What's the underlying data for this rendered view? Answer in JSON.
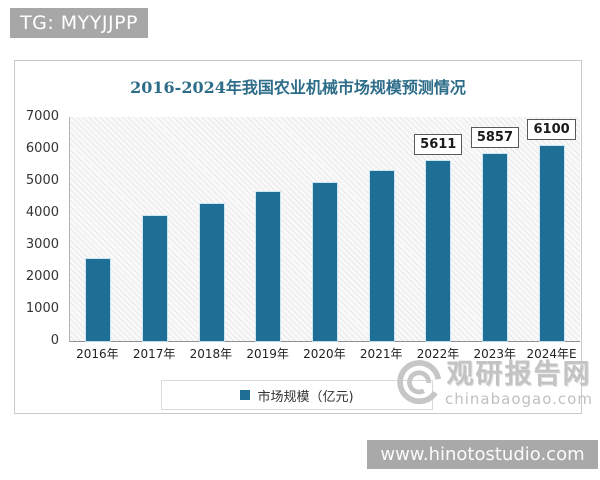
{
  "page": {
    "tg_badge": "TG: MYYJJPP",
    "bottom_banner": "www.hinotostudio.com"
  },
  "watermark": {
    "name": "观研报告网",
    "domain": "chinabaogao.com"
  },
  "chart_data": {
    "type": "bar",
    "title": "2016-2024年我国农业机械市场规模预测情况",
    "categories": [
      "2016年",
      "2017年",
      "2018年",
      "2019年",
      "2020年",
      "2021年",
      "2022年",
      "2023年",
      "2024年E"
    ],
    "values": [
      2550,
      3900,
      4286,
      4650,
      4950,
      5310,
      5611,
      5857,
      6100
    ],
    "data_labels": [
      "",
      "",
      "",
      "",
      "",
      "",
      "5611",
      "5857",
      "6100"
    ],
    "legend": "市场规模（亿元)",
    "xlabel": "",
    "ylabel": "",
    "ylim": [
      0,
      7000
    ],
    "y_ticks": [
      0,
      1000,
      2000,
      3000,
      4000,
      5000,
      6000,
      7000
    ],
    "grid": "none",
    "legend_position": "bottom-center",
    "plot_background": "diagonal-hatch",
    "colors": {
      "bar": "#1e6e96",
      "title": "#2e6d89",
      "badge_bg": "#a7a7a7",
      "banner_bg": "#a9a9a9",
      "watermark": "#c3c3c3"
    }
  }
}
